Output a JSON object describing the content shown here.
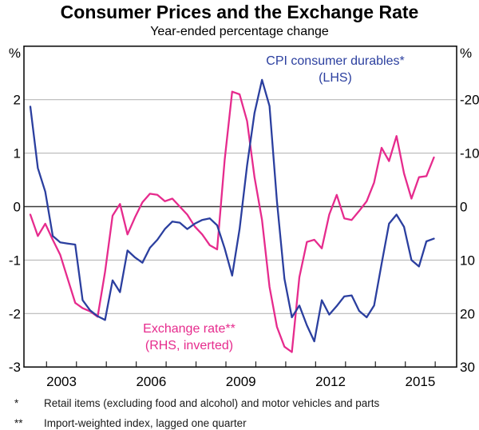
{
  "title": "Consumer Prices and the Exchange Rate",
  "subtitle": "Year-ended percentage change",
  "axes": {
    "left_unit": "%",
    "right_unit": "%",
    "left_ticks": [
      2,
      1,
      0,
      -1,
      -2,
      -3
    ],
    "right_ticks": [
      -20,
      -10,
      0,
      10,
      20,
      30
    ],
    "left_range": [
      -3,
      3
    ],
    "right_range": [
      30,
      -30
    ],
    "x_labels": [
      "2003",
      "2006",
      "2009",
      "2012",
      "2015"
    ]
  },
  "legend": {
    "cpi_line1": "CPI consumer durables*",
    "cpi_line2": "(LHS)",
    "fx_line1": "Exchange rate**",
    "fx_line2": "(RHS, inverted)"
  },
  "footnotes": [
    {
      "marker": "*",
      "text": "Retail items (excluding food and alcohol) and motor vehicles and parts"
    },
    {
      "marker": "**",
      "text": "Import-weighted index, lagged one quarter"
    }
  ],
  "colors": {
    "cpi": "#2b3f9f",
    "fx": "#e62b8d",
    "grid": "#b8b8b8",
    "zero_line": "#3a3a3a",
    "frame": "#111111"
  },
  "chart_data": {
    "type": "line",
    "title": "Consumer Prices and the Exchange Rate",
    "subtitle": "Year-ended percentage change",
    "x": [
      "2002Q1",
      "2002Q2",
      "2002Q3",
      "2002Q4",
      "2003Q1",
      "2003Q2",
      "2003Q3",
      "2003Q4",
      "2004Q1",
      "2004Q2",
      "2004Q3",
      "2004Q4",
      "2005Q1",
      "2005Q2",
      "2005Q3",
      "2005Q4",
      "2006Q1",
      "2006Q2",
      "2006Q3",
      "2006Q4",
      "2007Q1",
      "2007Q2",
      "2007Q3",
      "2007Q4",
      "2008Q1",
      "2008Q2",
      "2008Q3",
      "2008Q4",
      "2009Q1",
      "2009Q2",
      "2009Q3",
      "2009Q4",
      "2010Q1",
      "2010Q2",
      "2010Q3",
      "2010Q4",
      "2011Q1",
      "2011Q2",
      "2011Q3",
      "2011Q4",
      "2012Q1",
      "2012Q2",
      "2012Q3",
      "2012Q4",
      "2013Q1",
      "2013Q2",
      "2013Q3",
      "2013Q4",
      "2014Q1",
      "2014Q2",
      "2014Q3",
      "2014Q4",
      "2015Q1",
      "2015Q2",
      "2015Q3"
    ],
    "series": [
      {
        "name": "CPI consumer durables (LHS, %)",
        "axis": "left",
        "values": [
          1.87,
          0.72,
          0.28,
          -0.55,
          -0.67,
          -0.69,
          -0.71,
          -1.75,
          -1.94,
          -2.05,
          -2.12,
          -1.38,
          -1.6,
          -0.82,
          -0.95,
          -1.05,
          -0.77,
          -0.62,
          -0.42,
          -0.28,
          -0.3,
          -0.42,
          -0.32,
          -0.25,
          -0.22,
          -0.35,
          -0.78,
          -1.29,
          -0.42,
          0.77,
          1.75,
          2.37,
          1.88,
          0.1,
          -1.35,
          -2.07,
          -1.85,
          -2.22,
          -2.52,
          -1.75,
          -2.02,
          -1.86,
          -1.68,
          -1.66,
          -1.95,
          -2.07,
          -1.85,
          -1.07,
          -0.32,
          -0.15,
          -0.38,
          -1.0,
          -1.12,
          -0.65,
          -0.6
        ]
      },
      {
        "name": "Exchange rate (RHS, inverted, %)",
        "axis": "right",
        "values": [
          1.5,
          5.5,
          3.2,
          6.2,
          9.0,
          13.5,
          18.0,
          19.0,
          19.6,
          20.6,
          12.2,
          1.7,
          -0.5,
          5.2,
          2.0,
          -0.8,
          -2.4,
          -2.2,
          -1.0,
          -1.5,
          0.0,
          1.5,
          3.7,
          5.2,
          7.2,
          8.0,
          -8.7,
          -21.5,
          -21.0,
          -16.0,
          -5.5,
          2.5,
          15.0,
          22.5,
          26.2,
          27.2,
          13.2,
          6.6,
          6.2,
          7.8,
          1.5,
          -2.2,
          2.2,
          2.5,
          0.8,
          -1.0,
          -4.5,
          -11.0,
          -8.5,
          -13.2,
          -6.2,
          -1.5,
          -5.5,
          -5.7,
          -9.2
        ]
      }
    ],
    "ylim_left": [
      -3,
      3
    ],
    "ylim_right_inverted_top_to_bottom": [
      -30,
      30
    ],
    "grid": "horizontal",
    "legend_position": "inside-plot"
  }
}
